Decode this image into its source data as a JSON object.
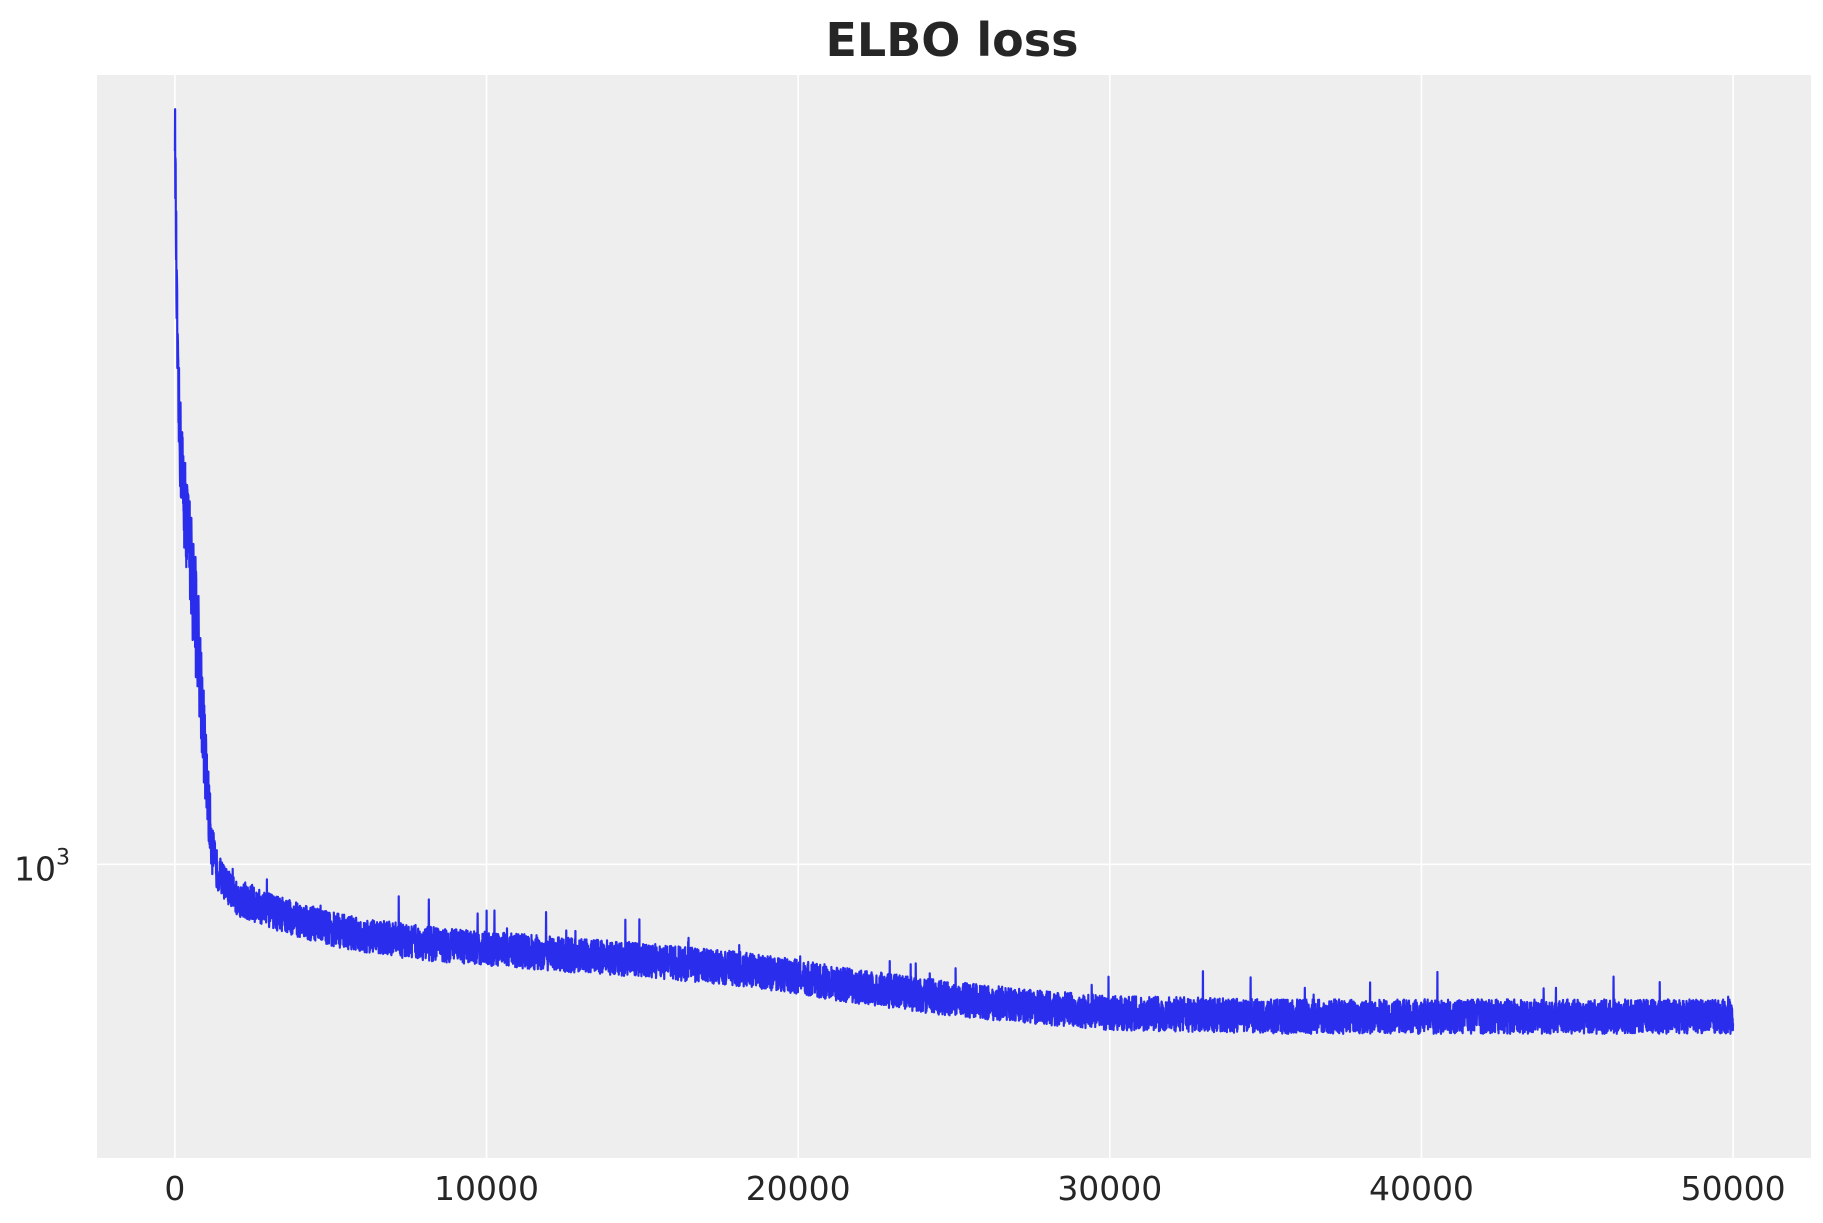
{
  "chart_data": {
    "type": "line",
    "title": "ELBO loss",
    "xlabel": "",
    "ylabel": "",
    "xlim": [
      -2500,
      52500
    ],
    "ylim": [
      830,
      1650
    ],
    "y_scale": "log",
    "grid": true,
    "legend": "none",
    "x_ticks": [
      {
        "value": 0,
        "label": "0"
      },
      {
        "value": 10000,
        "label": "10000"
      },
      {
        "value": 20000,
        "label": "20000"
      },
      {
        "value": 30000,
        "label": "30000"
      },
      {
        "value": 40000,
        "label": "40000"
      },
      {
        "value": 50000,
        "label": "50000"
      }
    ],
    "y_ticks": [
      {
        "value": 1000,
        "base": "10",
        "exponent": "3"
      }
    ],
    "series": [
      {
        "color": "#2a2eec",
        "x": [
          0,
          50,
          100,
          200,
          300,
          400,
          500,
          600,
          700,
          800,
          900,
          1000,
          1100,
          1200,
          1300,
          1500,
          1800,
          2000,
          2500,
          3000,
          4000,
          5000,
          6000,
          8000,
          10000,
          12000,
          15000,
          18000,
          20000,
          22000,
          25000,
          28000,
          30000,
          33000,
          35000,
          38000,
          40000,
          43000,
          45000,
          48000,
          50000
        ],
        "y": [
          1590,
          1430,
          1330,
          1280,
          1250,
          1225,
          1200,
          1175,
          1150,
          1120,
          1085,
          1050,
          1025,
          1005,
          995,
          988,
          980,
          975,
          972,
          968,
          962,
          957,
          953,
          948,
          945,
          942,
          938,
          933,
          928,
          922,
          915,
          910,
          907,
          906,
          905,
          905,
          905,
          905,
          905,
          905,
          905
        ],
        "noise": [
          0.02,
          0.03,
          0.03,
          0.03,
          0.03,
          0.03,
          0.035,
          0.035,
          0.035,
          0.035,
          0.03,
          0.025,
          0.02,
          0.015,
          0.012,
          0.01,
          0.01,
          0.01,
          0.01,
          0.01,
          0.01,
          0.01,
          0.01,
          0.01,
          0.01,
          0.01,
          0.01,
          0.01,
          0.01,
          0.01,
          0.01,
          0.01,
          0.01,
          0.01,
          0.01,
          0.01,
          0.01,
          0.01,
          0.01,
          0.01,
          0.01
        ]
      }
    ]
  }
}
